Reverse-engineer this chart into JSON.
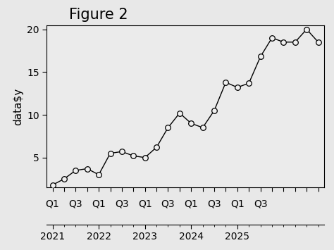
{
  "title": "Figure 2",
  "ylabel": "data$y",
  "y_values": [
    1.8,
    2.5,
    3.5,
    3.7,
    3.0,
    5.5,
    5.7,
    5.2,
    5.0,
    6.2,
    8.5,
    10.2,
    9.0,
    8.5,
    10.5,
    13.8,
    13.2,
    13.7,
    16.8,
    19.0,
    18.5,
    18.5,
    20.0,
    18.5
  ],
  "n_points": 24,
  "quarter_tick_labels_shown": [
    "Q1",
    "Q3",
    "Q1",
    "Q3",
    "Q1",
    "Q3",
    "Q1",
    "Q3",
    "Q1",
    "Q3"
  ],
  "quarter_tick_positions_shown": [
    0,
    2,
    4,
    6,
    8,
    10,
    12,
    14,
    16,
    18
  ],
  "year_positions": [
    0,
    4,
    8,
    12,
    16,
    20
  ],
  "year_labels": [
    "2021",
    "2022",
    "2023",
    "2024",
    "2025",
    ""
  ],
  "ylim": [
    1.5,
    20.5
  ],
  "yticks": [
    5,
    10,
    15,
    20
  ],
  "line_color": "#000000",
  "marker_face": "#f0f0f0",
  "marker_edge": "#000000",
  "plot_bg": "#ebebeb",
  "outer_bg": "#e8e8e8",
  "title_fontsize": 15,
  "label_fontsize": 11,
  "tick_fontsize": 10,
  "marker_size": 5.5
}
